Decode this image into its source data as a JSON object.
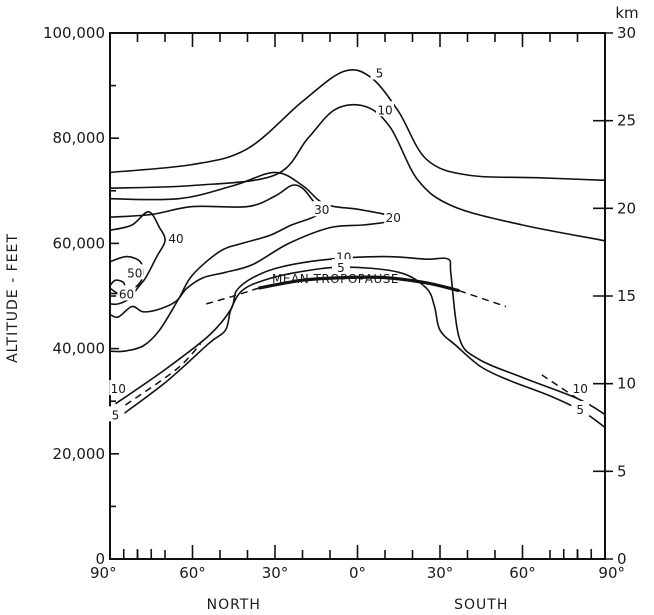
{
  "chart_data": {
    "type": "line",
    "title": "",
    "ylabel": "ALTITUDE - FEET",
    "ylabel_right": "km",
    "y_ticks_left": [
      {
        "value": 0,
        "label": "0"
      },
      {
        "value": 20000,
        "label": "20,000"
      },
      {
        "value": 40000,
        "label": "40,000"
      },
      {
        "value": 60000,
        "label": "60,000"
      },
      {
        "value": 80000,
        "label": "80,000"
      },
      {
        "value": 100000,
        "label": "100,000"
      }
    ],
    "y_ticks_right": [
      {
        "value": 0,
        "label": "0"
      },
      {
        "value": 5,
        "label": "5"
      },
      {
        "value": 10,
        "label": "10"
      },
      {
        "value": 15,
        "label": "15"
      },
      {
        "value": 20,
        "label": "20"
      },
      {
        "value": 25,
        "label": "25"
      },
      {
        "value": 30,
        "label": "30"
      }
    ],
    "x_ticks": [
      {
        "value": 90,
        "label": "90°"
      },
      {
        "value": 60,
        "label": "60°"
      },
      {
        "value": 30,
        "label": "30°"
      },
      {
        "value": 0,
        "label": "0°"
      },
      {
        "value": -30,
        "label": "30°"
      },
      {
        "value": -60,
        "label": "60°"
      },
      {
        "value": -90,
        "label": "90°"
      }
    ],
    "x_group_labels": [
      {
        "label": "NORTH",
        "at": 45
      },
      {
        "label": "SOUTH",
        "at": -45
      }
    ],
    "xlim": [
      90,
      -90
    ],
    "ylim": [
      0,
      100000
    ],
    "annotations": [
      {
        "text": "MEAN TROPOPAUSE",
        "x": 8,
        "y": 52500
      }
    ],
    "contours": [
      {
        "label": "5",
        "label_points": [
          {
            "x": -8,
            "y": 92500
          },
          {
            "x": -81,
            "y": 28500
          }
        ],
        "points": [
          [
            90,
            73500
          ],
          [
            60,
            75000
          ],
          [
            40,
            78000
          ],
          [
            20,
            87000
          ],
          [
            5,
            92700
          ],
          [
            -5,
            91500
          ],
          [
            -15,
            85000
          ],
          [
            -25,
            76000
          ],
          [
            -40,
            73000
          ],
          [
            -65,
            72500
          ],
          [
            -90,
            72000
          ]
        ]
      },
      {
        "label": "10",
        "label_points": [
          {
            "x": -10,
            "y": 85500
          },
          {
            "x": -81,
            "y": 32500
          }
        ],
        "points": [
          [
            90,
            70500
          ],
          [
            60,
            71000
          ],
          [
            30,
            73000
          ],
          [
            18,
            80000
          ],
          [
            8,
            85500
          ],
          [
            -3,
            86000
          ],
          [
            -12,
            82000
          ],
          [
            -22,
            72000
          ],
          [
            -35,
            67000
          ],
          [
            -60,
            63500
          ],
          [
            -90,
            60500
          ]
        ]
      },
      {
        "label": "20",
        "label_points": [
          {
            "x": -13,
            "y": 65000
          }
        ],
        "points": [
          [
            90,
            68500
          ],
          [
            65,
            68500
          ],
          [
            45,
            71000
          ],
          [
            30,
            73500
          ],
          [
            20,
            71000
          ],
          [
            12,
            67500
          ],
          [
            0,
            66500
          ],
          [
            -10,
            65500
          ],
          [
            -13,
            64500
          ],
          [
            -10,
            64000
          ],
          [
            -2,
            63500
          ],
          [
            10,
            63000
          ],
          [
            25,
            60000
          ],
          [
            38,
            56000
          ],
          [
            48,
            54500
          ],
          [
            56,
            53500
          ],
          [
            62,
            51500
          ],
          [
            66,
            49000
          ],
          [
            72,
            47500
          ],
          [
            78,
            47000
          ],
          [
            82,
            48000
          ],
          [
            87,
            46000
          ],
          [
            90,
            46500
          ]
        ]
      },
      {
        "label": "30",
        "label_points": [
          {
            "x": 13,
            "y": 66500
          }
        ],
        "points": [
          [
            90,
            65000
          ],
          [
            75,
            65500
          ],
          [
            60,
            67000
          ],
          [
            40,
            67000
          ],
          [
            30,
            69000
          ],
          [
            24,
            71000
          ],
          [
            20,
            70500
          ],
          [
            16,
            68000
          ],
          [
            13,
            66500
          ],
          [
            16,
            65000
          ],
          [
            24,
            63500
          ],
          [
            32,
            61500
          ],
          [
            42,
            60000
          ],
          [
            50,
            58500
          ],
          [
            60,
            54000
          ],
          [
            65,
            49500
          ],
          [
            72,
            43500
          ],
          [
            78,
            40500
          ],
          [
            85,
            39500
          ],
          [
            90,
            39500
          ]
        ]
      },
      {
        "label": "40",
        "label_points": [
          {
            "x": 66,
            "y": 61000
          }
        ],
        "points": [
          [
            90,
            62500
          ],
          [
            82,
            63500
          ],
          [
            76,
            66000
          ],
          [
            72,
            63000
          ],
          [
            70,
            60500
          ],
          [
            73,
            57500
          ],
          [
            77,
            53500
          ],
          [
            80,
            51500
          ],
          [
            83,
            49500
          ],
          [
            87,
            48500
          ],
          [
            90,
            48500
          ]
        ]
      },
      {
        "label": "50",
        "label_points": [
          {
            "x": 81,
            "y": 54500
          }
        ],
        "points": [
          [
            90,
            56500
          ],
          [
            84,
            57500
          ],
          [
            79,
            56500
          ],
          [
            78,
            54000
          ],
          [
            80,
            52000
          ],
          [
            84,
            51000
          ],
          [
            87,
            50500
          ],
          [
            90,
            51500
          ]
        ]
      },
      {
        "label": "60",
        "label_points": [
          {
            "x": 84,
            "y": 50500
          }
        ],
        "points": [
          [
            90,
            52000
          ],
          [
            88,
            53000
          ],
          [
            85,
            52500
          ],
          [
            85,
            51000
          ],
          [
            87,
            50500
          ],
          [
            90,
            50500
          ]
        ]
      },
      {
        "label": "10",
        "label_points": [
          {
            "x": 5,
            "y": 57500
          },
          {
            "x": 87,
            "y": 32500
          }
        ],
        "points": [
          [
            88,
            29500
          ],
          [
            70,
            36000
          ],
          [
            54,
            42500
          ],
          [
            46,
            47500
          ],
          [
            44,
            51000
          ],
          [
            38,
            53500
          ],
          [
            28,
            55500
          ],
          [
            10,
            57000
          ],
          [
            -10,
            57500
          ],
          [
            -25,
            57000
          ],
          [
            -33,
            57000
          ],
          [
            -34,
            54000
          ],
          [
            -37,
            42000
          ],
          [
            -44,
            38000
          ],
          [
            -60,
            34500
          ],
          [
            -80,
            30500
          ],
          [
            -90,
            27500
          ]
        ]
      },
      {
        "label": "5",
        "label_points": [
          {
            "x": 6,
            "y": 55500
          },
          {
            "x": 88,
            "y": 27500
          }
        ],
        "points": [
          [
            88,
            26500
          ],
          [
            70,
            33500
          ],
          [
            54,
            41000
          ],
          [
            48,
            43500
          ],
          [
            46,
            47500
          ],
          [
            42,
            51000
          ],
          [
            34,
            53000
          ],
          [
            22,
            54500
          ],
          [
            5,
            55500
          ],
          [
            -15,
            54500
          ],
          [
            -25,
            51500
          ],
          [
            -28,
            48000
          ],
          [
            -30,
            43500
          ],
          [
            -36,
            40500
          ],
          [
            -45,
            36500
          ],
          [
            -55,
            34000
          ],
          [
            -70,
            31000
          ],
          [
            -82,
            28000
          ],
          [
            -90,
            25000
          ]
        ]
      }
    ],
    "tropopause": {
      "name": "MEAN TROPOPAUSE",
      "solid": [
        [
          36,
          51500
        ],
        [
          20,
          53000
        ],
        [
          5,
          53500
        ],
        [
          -10,
          53500
        ],
        [
          -25,
          52500
        ],
        [
          -37,
          51000
        ]
      ],
      "dashed": [
        [
          [
            55,
            48500
          ],
          [
            45,
            50000
          ],
          [
            36,
            51500
          ]
        ],
        [
          [
            -37,
            51000
          ],
          [
            -54,
            48000
          ]
        ],
        [
          [
            88,
            28000
          ],
          [
            66,
            36000
          ],
          [
            57,
            41000
          ]
        ],
        [
          [
            -67,
            35000
          ],
          [
            -80,
            30500
          ]
        ]
      ]
    }
  }
}
